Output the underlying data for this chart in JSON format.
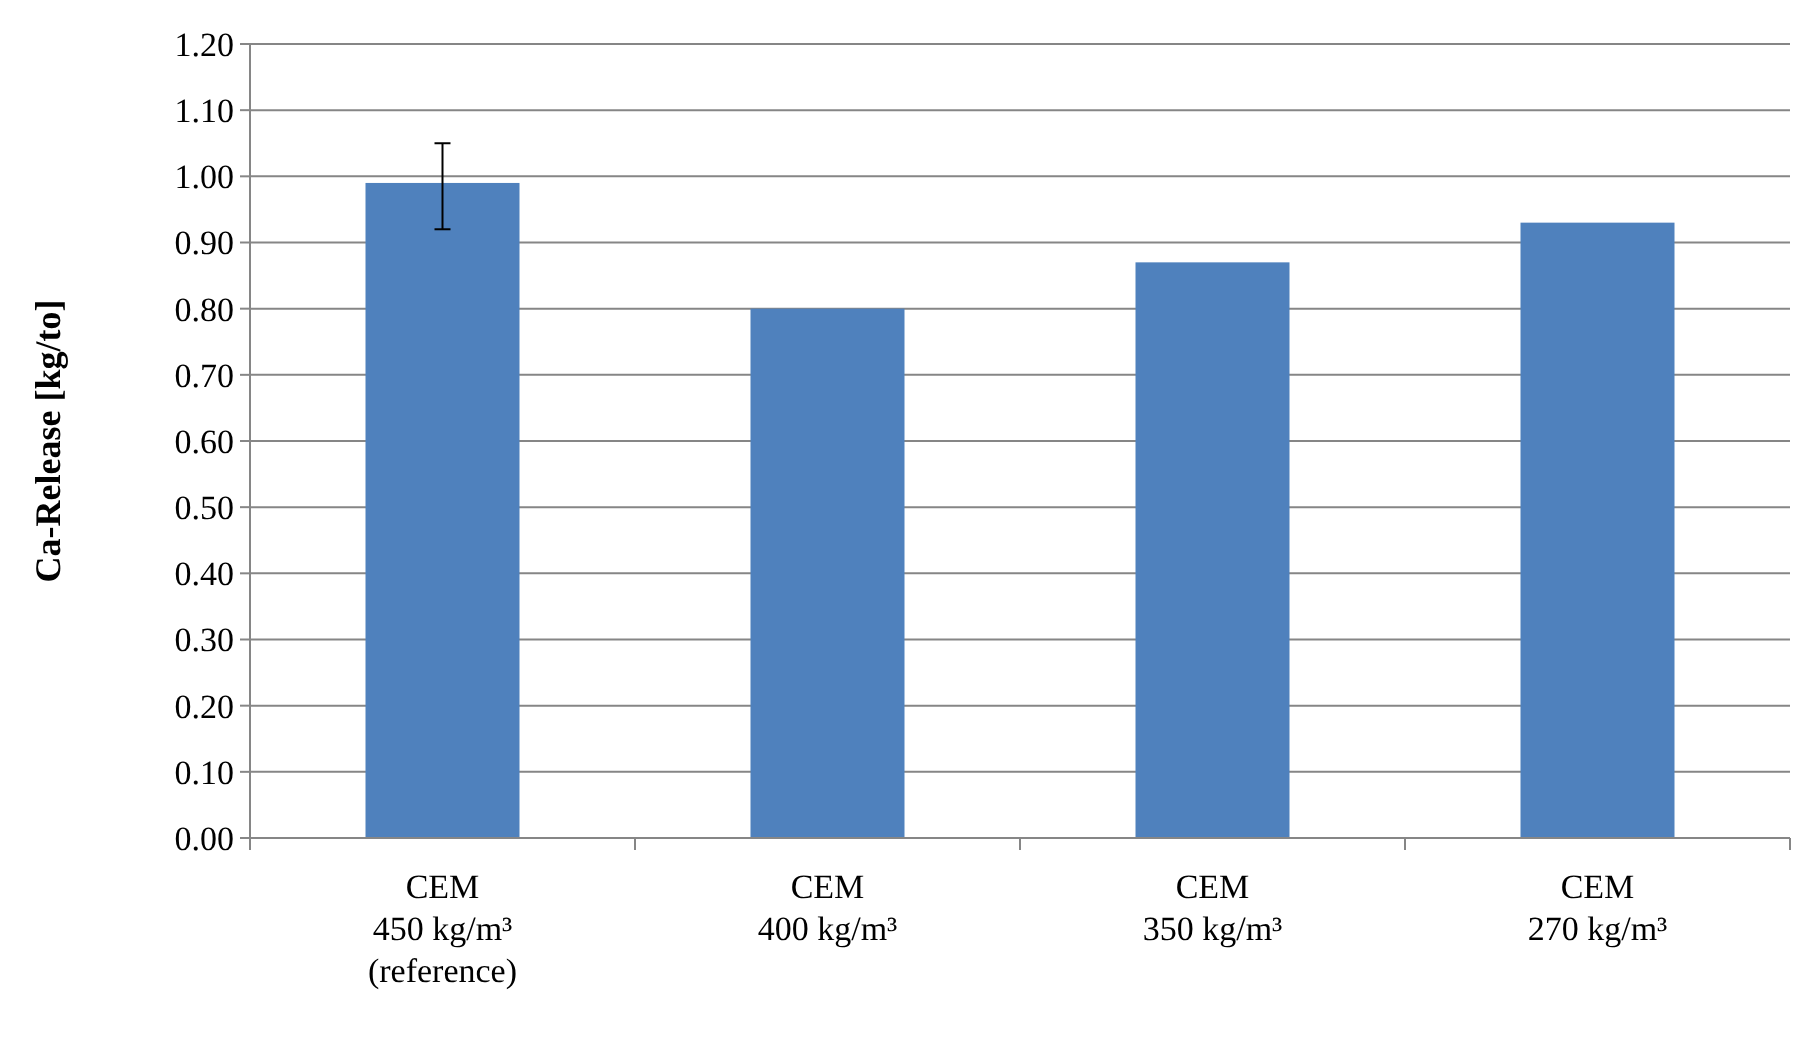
{
  "chart_data": {
    "type": "bar",
    "ylabel": "Ca-Release [kg/to]",
    "categories": [
      "CEM\n450 kg/m³\n(reference)",
      "CEM\n400 kg/m³",
      "CEM\n350 kg/m³",
      "CEM\n270 kg/m³"
    ],
    "values": [
      0.99,
      0.8,
      0.87,
      0.93
    ],
    "errors": [
      [
        0.92,
        1.05
      ],
      null,
      null,
      null
    ],
    "color": "#4f81bd",
    "ylim": [
      0,
      1.2
    ],
    "yticks": [
      {
        "value": 0,
        "label": "0.00"
      },
      {
        "value": 0.1,
        "label": "0.10"
      },
      {
        "value": 0.2,
        "label": "0.20"
      },
      {
        "value": 0.3,
        "label": "0.30"
      },
      {
        "value": 0.4,
        "label": "0.40"
      },
      {
        "value": 0.5,
        "label": "0.50"
      },
      {
        "value": 0.6,
        "label": "0.60"
      },
      {
        "value": 0.7,
        "label": "0.70"
      },
      {
        "value": 0.8,
        "label": "0.80"
      },
      {
        "value": 0.9,
        "label": "0.90"
      },
      {
        "value": 1,
        "label": "1.00"
      },
      {
        "value": 1.1,
        "label": "1.10"
      },
      {
        "value": 1.2,
        "label": "1.20"
      }
    ],
    "grid": "y"
  }
}
